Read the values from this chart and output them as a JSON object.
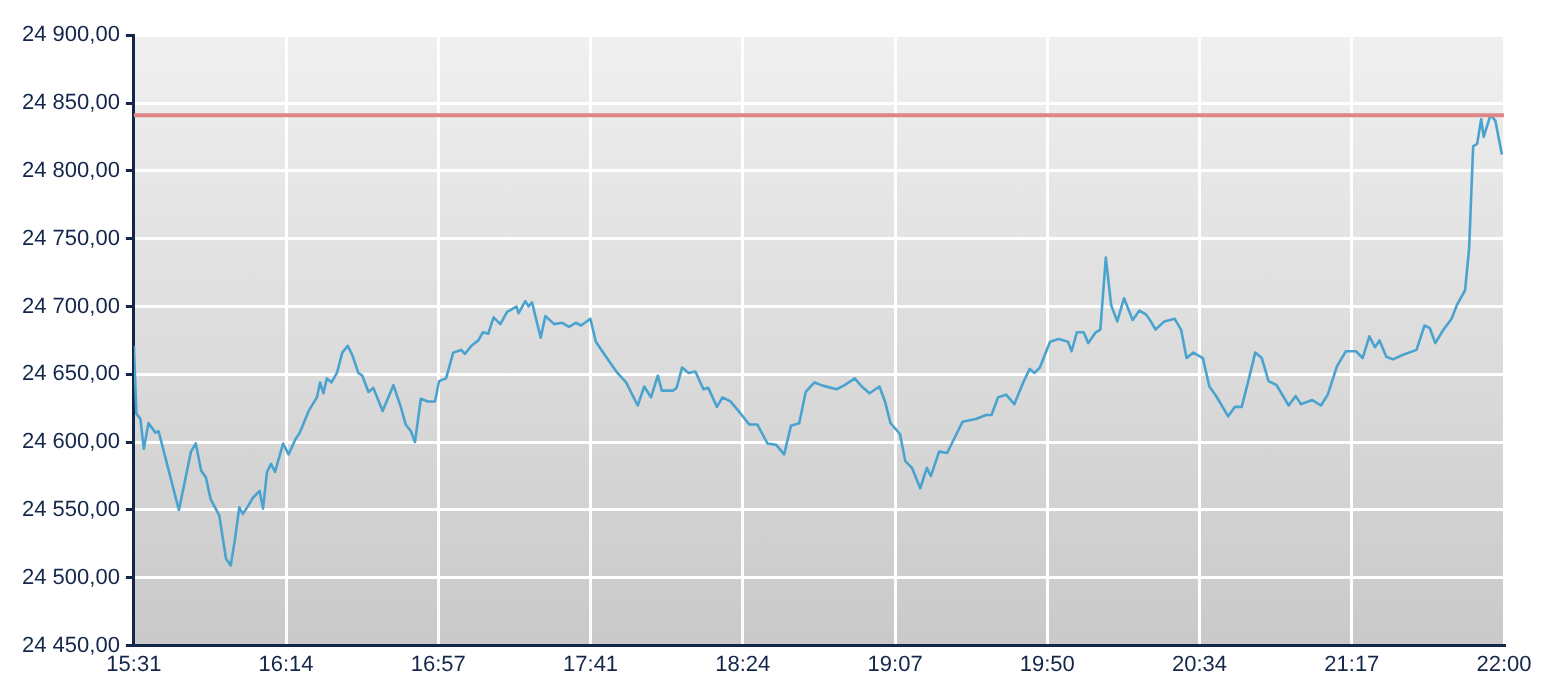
{
  "chart_data": {
    "type": "line",
    "grid": true,
    "legend": false,
    "marker": "none",
    "line_style": "solid",
    "xlim": [
      15.517,
      22.0
    ],
    "xticks": [
      {
        "value": 15.517,
        "label": "15:31"
      },
      {
        "value": 16.237,
        "label": "16:14"
      },
      {
        "value": 16.957,
        "label": "16:57"
      },
      {
        "value": 17.678,
        "label": "17:41"
      },
      {
        "value": 18.398,
        "label": "18:24"
      },
      {
        "value": 19.119,
        "label": "19:07"
      },
      {
        "value": 19.839,
        "label": "19:50"
      },
      {
        "value": 20.559,
        "label": "20:34"
      },
      {
        "value": 21.28,
        "label": "21:17"
      },
      {
        "value": 22.0,
        "label": "22:00"
      }
    ],
    "ylim": [
      24450,
      24900
    ],
    "yticks": [
      {
        "value": 24450,
        "label": "24 450,00"
      },
      {
        "value": 24500,
        "label": "24 500,00"
      },
      {
        "value": 24550,
        "label": "24 550,00"
      },
      {
        "value": 24600,
        "label": "24 600,00"
      },
      {
        "value": 24650,
        "label": "24 650,00"
      },
      {
        "value": 24700,
        "label": "24 700,00"
      },
      {
        "value": 24750,
        "label": "24 750,00"
      },
      {
        "value": 24800,
        "label": "24 800,00"
      },
      {
        "value": 24850,
        "label": "24 850,00"
      },
      {
        "value": 24900,
        "label": "24 900,00"
      }
    ],
    "ref_lines": [
      {
        "axis": "y",
        "value": 24841,
        "color": "#e08585"
      }
    ],
    "series": [
      {
        "color": "#4aa3cf",
        "x": [
          15.517,
          15.529,
          15.548,
          15.564,
          15.586,
          15.619,
          15.634,
          15.682,
          15.73,
          15.762,
          15.787,
          15.81,
          15.835,
          15.858,
          15.88,
          15.921,
          15.953,
          15.975,
          15.994,
          16.016,
          16.032,
          16.058,
          16.08,
          16.112,
          16.128,
          16.147,
          16.166,
          16.185,
          16.223,
          16.249,
          16.281,
          16.302,
          16.344,
          16.383,
          16.398,
          16.414,
          16.43,
          16.452,
          16.478,
          16.503,
          16.529,
          16.551,
          16.579,
          16.598,
          16.627,
          16.65,
          16.694,
          16.745,
          16.78,
          16.803,
          16.828,
          16.847,
          16.875,
          16.908,
          16.942,
          16.961,
          16.994,
          17.028,
          17.066,
          17.083,
          17.114,
          17.147,
          17.168,
          17.194,
          17.219,
          17.251,
          17.283,
          17.328,
          17.337,
          17.369,
          17.385,
          17.401,
          17.423,
          17.442,
          17.464,
          17.506,
          17.544,
          17.576,
          17.608,
          17.633,
          17.677,
          17.703,
          17.751,
          17.805,
          17.846,
          17.901,
          17.932,
          17.964,
          17.996,
          18.015,
          18.069,
          18.085,
          18.111,
          18.142,
          18.174,
          18.212,
          18.235,
          18.276,
          18.302,
          18.34,
          18.388,
          18.429,
          18.467,
          18.515,
          18.556,
          18.594,
          18.626,
          18.665,
          18.696,
          18.737,
          18.77,
          18.817,
          18.842,
          18.88,
          18.928,
          18.961,
          18.998,
          19.045,
          19.071,
          19.097,
          19.142,
          19.167,
          19.199,
          19.238,
          19.269,
          19.288,
          19.327,
          19.365,
          19.438,
          19.501,
          19.549,
          19.575,
          19.606,
          19.644,
          19.683,
          19.725,
          19.756,
          19.778,
          19.804,
          19.852,
          19.893,
          19.937,
          19.954,
          19.979,
          20.011,
          20.033,
          20.068,
          20.09,
          20.116,
          20.141,
          20.17,
          20.202,
          20.243,
          20.275,
          20.307,
          20.329,
          20.351,
          20.393,
          20.441,
          20.472,
          20.498,
          20.53,
          20.575,
          20.606,
          20.638,
          20.695,
          20.727,
          20.759,
          20.79,
          20.823,
          20.854,
          20.886,
          20.924,
          20.981,
          21.014,
          21.039,
          21.093,
          21.134,
          21.166,
          21.21,
          21.252,
          21.3,
          21.331,
          21.363,
          21.389,
          21.411,
          21.443,
          21.475,
          21.516,
          21.586,
          21.624,
          21.649,
          21.675,
          21.714,
          21.752,
          21.777,
          21.816,
          21.835,
          21.854,
          21.873,
          21.892,
          21.904,
          21.936,
          21.959,
          21.99
        ],
        "values": [
          24671,
          24621,
          24617,
          24595,
          24614,
          24607,
          24608,
          24579,
          24550,
          24574,
          24593,
          24599,
          24579,
          24574,
          24558,
          24546,
          24514,
          24509,
          24527,
          24552,
          24547,
          24553,
          24559,
          24564,
          24551,
          24578,
          24584,
          24578,
          24599,
          24591,
          24602,
          24607,
          24623,
          24633,
          24644,
          24636,
          24647,
          24644,
          24651,
          24666,
          24671,
          24664,
          24651,
          24649,
          24637,
          24640,
          24623,
          24642,
          24626,
          24613,
          24608,
          24600,
          24632,
          24630,
          24630,
          24645,
          24647,
          24666,
          24668,
          24665,
          24671,
          24675,
          24681,
          24680,
          24692,
          24687,
          24696,
          24700,
          24695,
          24704,
          24700,
          24703,
          24689,
          24677,
          24693,
          24687,
          24688,
          24685,
          24688,
          24686,
          24691,
          24674,
          24663,
          24651,
          24644,
          24627,
          24641,
          24633,
          24649,
          24638,
          24638,
          24640,
          24655,
          24651,
          24652,
          24639,
          24640,
          24626,
          24633,
          24630,
          24621,
          24613,
          24613,
          24599,
          24598,
          24591,
          24612,
          24614,
          24637,
          24644,
          24642,
          24640,
          24639,
          24642,
          24647,
          24641,
          24636,
          24641,
          24630,
          24614,
          24606,
          24586,
          24581,
          24566,
          24581,
          24575,
          24593,
          24592,
          24615,
          24617,
          24620,
          24620,
          24633,
          24635,
          24628,
          24644,
          24654,
          24651,
          24655,
          24674,
          24676,
          24674,
          24667,
          24681,
          24681,
          24673,
          24681,
          24683,
          24736,
          24701,
          24689,
          24706,
          24690,
          24697,
          24694,
          24689,
          24683,
          24689,
          24691,
          24683,
          24662,
          24666,
          24662,
          24641,
          24634,
          24619,
          24626,
          24626,
          24645,
          24666,
          24662,
          24645,
          24642,
          24627,
          24634,
          24628,
          24631,
          24627,
          24635,
          24656,
          24667,
          24667,
          24662,
          24678,
          24670,
          24675,
          24663,
          24661,
          24664,
          24668,
          24686,
          24684,
          24673,
          24683,
          24691,
          24701,
          24712,
          24743,
          24818,
          24820,
          24838,
          24825,
          24841,
          24837,
          24812
        ]
      }
    ]
  }
}
